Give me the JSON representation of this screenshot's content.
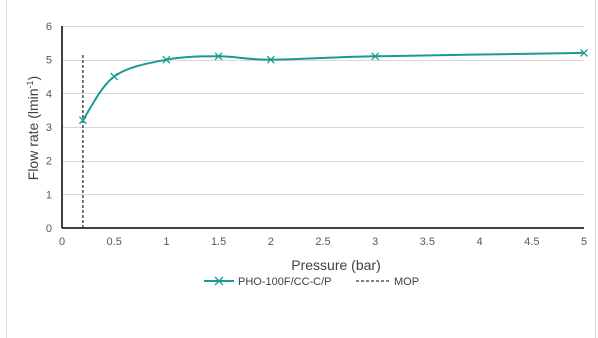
{
  "chart_data": {
    "type": "line",
    "xlabel": "Pressure (bar)",
    "ylabel": "Flow rate (lmin",
    "ylabel_sup": "-1",
    "ylabel_end": ")",
    "xlim": [
      0,
      5
    ],
    "ylim": [
      0,
      6
    ],
    "x_ticks": [
      "0",
      "0.5",
      "1",
      "1.5",
      "2",
      "2.5",
      "3",
      "3.5",
      "4",
      "4.5",
      "5"
    ],
    "y_ticks": [
      "0",
      "1",
      "2",
      "3",
      "4",
      "5",
      "6"
    ],
    "grid": true,
    "legend_position": "bottom",
    "series": [
      {
        "name": "PHO-100F/CC-C/P",
        "color": "#1a9a94",
        "marker": "x",
        "smooth": true,
        "x": [
          0.2,
          0.5,
          1,
          1.5,
          2,
          3,
          5
        ],
        "y": [
          3.2,
          4.5,
          5.0,
          5.1,
          5.0,
          5.1,
          5.2
        ]
      }
    ],
    "reference_lines": [
      {
        "name": "MOP",
        "orientation": "vertical",
        "x": 0.2,
        "y_range": [
          0,
          5.15
        ],
        "style": "dashed",
        "color": "#333333"
      }
    ]
  }
}
